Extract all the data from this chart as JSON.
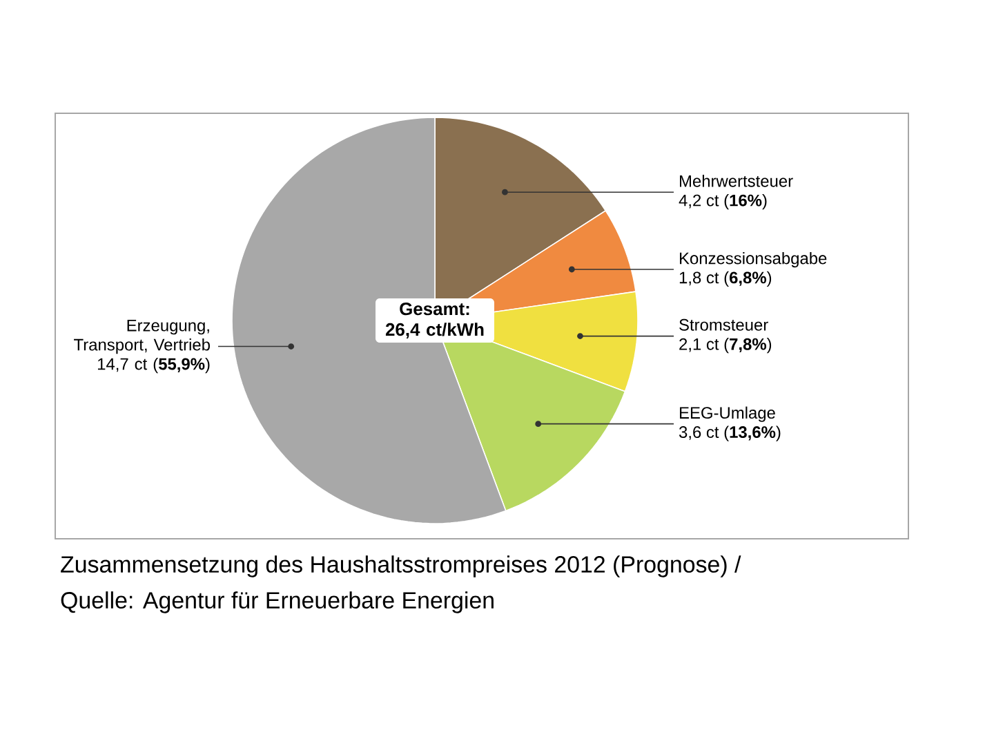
{
  "chart_data": {
    "type": "pie",
    "title": "Zusammensetzung des Haushaltsstrompreises 2012 (Prognose) /",
    "categories": [
      "Mehrwertsteuer",
      "Konzessionsabgabe",
      "Stromsteuer",
      "EEG-Umlage",
      "Erzeugung, Transport, Vertrieb"
    ],
    "values": [
      4.2,
      1.8,
      2.1,
      3.6,
      14.7
    ],
    "value_labels": [
      "4,2 ct (**16%**)",
      "1,8 ct (**6,8%**)",
      "2,1 ct (**7,8%**)",
      "3,6 ct (**13,6%**)",
      "14,7 ct (**55,9%**)"
    ],
    "colors": [
      "#8a7050",
      "#f08a40",
      "#f0e040",
      "#b8d860",
      "#a8a8a8"
    ],
    "annotations": [
      "Gesamt: 26,4 ct/kWh",
      "Quelle: Agentur für Erneuerbare Energien"
    ]
  }
}
